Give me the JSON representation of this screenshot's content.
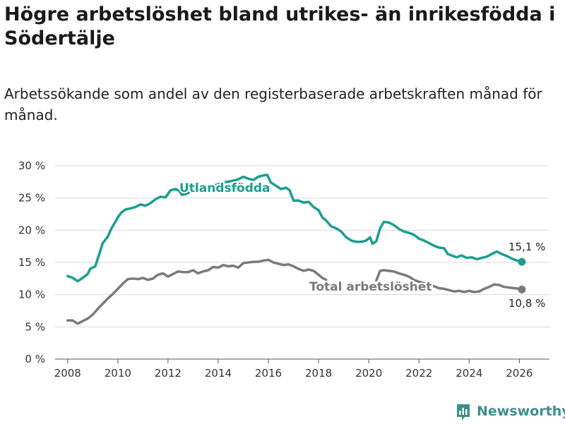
{
  "chart_data": {
    "type": "line",
    "title": "Högre arbetslöshet bland utrikes- än inrikesfödda i Södertälje",
    "subtitle": "Arbetssökande som andel av den registerbaserade arbetskraften månad för månad.",
    "xlabel": "",
    "ylabel": "",
    "xlim": [
      2007.5,
      2027.2
    ],
    "ylim": [
      0,
      30
    ],
    "x_ticks": [
      2008,
      2010,
      2012,
      2014,
      2016,
      2018,
      2020,
      2022,
      2024,
      2026
    ],
    "x_tick_labels": [
      "2008",
      "2010",
      "2012",
      "2014",
      "2016",
      "2018",
      "2020",
      "2022",
      "2024",
      "2026"
    ],
    "y_ticks": [
      0,
      5,
      10,
      15,
      20,
      25,
      30
    ],
    "y_tick_labels": [
      "0 %",
      "5 %",
      "10 %",
      "15 %",
      "20 %",
      "25 %",
      "30 %"
    ],
    "grid": "horizontal",
    "series": [
      {
        "name": "Utlandsfödda",
        "color": "#1a9e8f",
        "end_label": "15,1 %",
        "points": [
          [
            2008.0,
            12.9
          ],
          [
            2008.2,
            12.6
          ],
          [
            2008.4,
            12.1
          ],
          [
            2008.6,
            12.6
          ],
          [
            2008.8,
            13.2
          ],
          [
            2008.9,
            14.0
          ],
          [
            2009.1,
            14.4
          ],
          [
            2009.25,
            16.2
          ],
          [
            2009.4,
            18.0
          ],
          [
            2009.6,
            19.0
          ],
          [
            2009.75,
            20.3
          ],
          [
            2009.9,
            21.3
          ],
          [
            2010.0,
            22.0
          ],
          [
            2010.15,
            22.8
          ],
          [
            2010.3,
            23.2
          ],
          [
            2010.5,
            23.4
          ],
          [
            2010.7,
            23.6
          ],
          [
            2010.9,
            24.0
          ],
          [
            2011.1,
            23.8
          ],
          [
            2011.3,
            24.2
          ],
          [
            2011.5,
            24.8
          ],
          [
            2011.7,
            25.2
          ],
          [
            2011.9,
            25.1
          ],
          [
            2012.1,
            26.2
          ],
          [
            2012.3,
            26.4
          ],
          [
            2012.45,
            26.1
          ],
          [
            2012.55,
            25.5
          ],
          [
            2012.7,
            25.6
          ],
          [
            2012.85,
            25.9
          ],
          [
            2013.0,
            26.1
          ],
          [
            2013.3,
            26.3
          ],
          [
            2013.6,
            26.8
          ],
          [
            2013.9,
            27.0
          ],
          [
            2014.2,
            27.4
          ],
          [
            2014.5,
            27.6
          ],
          [
            2014.8,
            27.9
          ],
          [
            2015.0,
            28.3
          ],
          [
            2015.2,
            28.0
          ],
          [
            2015.4,
            27.8
          ],
          [
            2015.6,
            28.3
          ],
          [
            2015.8,
            28.5
          ],
          [
            2015.95,
            28.6
          ],
          [
            2016.1,
            27.4
          ],
          [
            2016.3,
            26.9
          ],
          [
            2016.5,
            26.4
          ],
          [
            2016.7,
            26.6
          ],
          [
            2016.85,
            26.2
          ],
          [
            2017.0,
            24.6
          ],
          [
            2017.2,
            24.6
          ],
          [
            2017.4,
            24.3
          ],
          [
            2017.6,
            24.4
          ],
          [
            2017.8,
            23.6
          ],
          [
            2018.0,
            23.1
          ],
          [
            2018.15,
            22.0
          ],
          [
            2018.3,
            21.5
          ],
          [
            2018.5,
            20.6
          ],
          [
            2018.7,
            20.3
          ],
          [
            2018.9,
            19.8
          ],
          [
            2019.1,
            18.9
          ],
          [
            2019.3,
            18.4
          ],
          [
            2019.5,
            18.2
          ],
          [
            2019.7,
            18.2
          ],
          [
            2019.9,
            18.4
          ],
          [
            2020.05,
            18.9
          ],
          [
            2020.15,
            17.9
          ],
          [
            2020.3,
            18.3
          ],
          [
            2020.45,
            20.3
          ],
          [
            2020.6,
            21.3
          ],
          [
            2020.8,
            21.2
          ],
          [
            2021.0,
            20.8
          ],
          [
            2021.2,
            20.2
          ],
          [
            2021.4,
            19.8
          ],
          [
            2021.6,
            19.6
          ],
          [
            2021.8,
            19.3
          ],
          [
            2022.0,
            18.7
          ],
          [
            2022.2,
            18.4
          ],
          [
            2022.4,
            18.0
          ],
          [
            2022.6,
            17.6
          ],
          [
            2022.8,
            17.3
          ],
          [
            2023.0,
            17.2
          ],
          [
            2023.15,
            16.3
          ],
          [
            2023.3,
            16.1
          ],
          [
            2023.5,
            15.8
          ],
          [
            2023.7,
            16.1
          ],
          [
            2023.9,
            15.7
          ],
          [
            2024.1,
            15.8
          ],
          [
            2024.3,
            15.5
          ],
          [
            2024.5,
            15.7
          ],
          [
            2024.7,
            15.9
          ],
          [
            2024.9,
            16.3
          ],
          [
            2025.1,
            16.7
          ],
          [
            2025.3,
            16.3
          ],
          [
            2025.5,
            16.0
          ],
          [
            2025.7,
            15.6
          ],
          [
            2025.9,
            15.3
          ],
          [
            2026.1,
            15.1
          ]
        ]
      },
      {
        "name": "Total arbetslöshet",
        "color": "#7a7a7a",
        "end_label": "10,8 %",
        "points": [
          [
            2008.0,
            6.0
          ],
          [
            2008.2,
            6.0
          ],
          [
            2008.4,
            5.5
          ],
          [
            2008.6,
            5.9
          ],
          [
            2008.8,
            6.3
          ],
          [
            2009.0,
            6.9
          ],
          [
            2009.2,
            7.8
          ],
          [
            2009.4,
            8.6
          ],
          [
            2009.6,
            9.4
          ],
          [
            2009.8,
            10.1
          ],
          [
            2010.0,
            10.9
          ],
          [
            2010.2,
            11.7
          ],
          [
            2010.4,
            12.4
          ],
          [
            2010.6,
            12.5
          ],
          [
            2010.8,
            12.4
          ],
          [
            2011.0,
            12.6
          ],
          [
            2011.2,
            12.3
          ],
          [
            2011.4,
            12.5
          ],
          [
            2011.6,
            13.1
          ],
          [
            2011.8,
            13.3
          ],
          [
            2012.0,
            12.8
          ],
          [
            2012.2,
            13.2
          ],
          [
            2012.4,
            13.6
          ],
          [
            2012.6,
            13.5
          ],
          [
            2012.8,
            13.5
          ],
          [
            2013.0,
            13.8
          ],
          [
            2013.2,
            13.3
          ],
          [
            2013.4,
            13.6
          ],
          [
            2013.6,
            13.8
          ],
          [
            2013.8,
            14.3
          ],
          [
            2014.0,
            14.2
          ],
          [
            2014.2,
            14.6
          ],
          [
            2014.4,
            14.4
          ],
          [
            2014.6,
            14.5
          ],
          [
            2014.8,
            14.2
          ],
          [
            2015.0,
            14.9
          ],
          [
            2015.2,
            15.0
          ],
          [
            2015.4,
            15.1
          ],
          [
            2015.6,
            15.1
          ],
          [
            2015.8,
            15.3
          ],
          [
            2016.0,
            15.4
          ],
          [
            2016.2,
            15.0
          ],
          [
            2016.4,
            14.8
          ],
          [
            2016.6,
            14.6
          ],
          [
            2016.8,
            14.7
          ],
          [
            2017.0,
            14.4
          ],
          [
            2017.2,
            14.0
          ],
          [
            2017.4,
            13.7
          ],
          [
            2017.6,
            13.9
          ],
          [
            2017.8,
            13.7
          ],
          [
            2018.0,
            13.1
          ],
          [
            2018.15,
            12.6
          ],
          [
            2018.3,
            12.3
          ],
          null,
          [
            2020.3,
            12.2
          ],
          [
            2020.45,
            13.7
          ],
          [
            2020.6,
            13.8
          ],
          [
            2020.8,
            13.7
          ],
          [
            2021.0,
            13.6
          ],
          [
            2021.2,
            13.3
          ],
          [
            2021.4,
            13.1
          ],
          [
            2021.6,
            12.8
          ],
          [
            2021.8,
            12.3
          ],
          [
            2022.0,
            12.0
          ],
          [
            2022.2,
            11.8
          ],
          [
            2022.4,
            11.6
          ],
          [
            2022.6,
            11.3
          ],
          [
            2022.8,
            11.0
          ],
          [
            2023.0,
            10.9
          ],
          [
            2023.2,
            10.7
          ],
          [
            2023.4,
            10.5
          ],
          [
            2023.6,
            10.6
          ],
          [
            2023.8,
            10.4
          ],
          [
            2024.0,
            10.6
          ],
          [
            2024.2,
            10.4
          ],
          [
            2024.4,
            10.5
          ],
          [
            2024.6,
            10.9
          ],
          [
            2024.8,
            11.2
          ],
          [
            2025.0,
            11.6
          ],
          [
            2025.2,
            11.5
          ],
          [
            2025.4,
            11.2
          ],
          [
            2025.6,
            11.1
          ],
          [
            2025.8,
            11.0
          ],
          [
            2026.0,
            10.9
          ],
          [
            2026.1,
            10.8
          ]
        ]
      }
    ]
  },
  "brand": {
    "name": "Newsworthy"
  }
}
